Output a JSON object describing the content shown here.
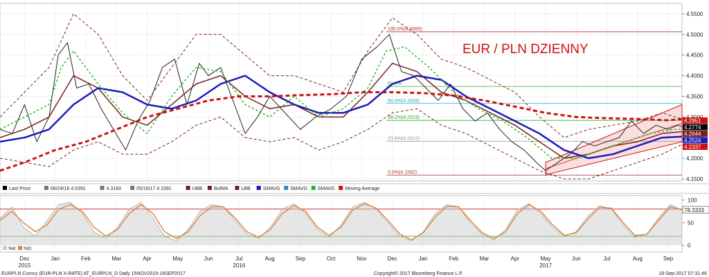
{
  "chart_title": "EUR / PLN DZIENNY",
  "footer": {
    "security": "EURPLN Curncy (EUR-PLN X-RATE) AT_EURPLN_D  Daily 15NOV2015-18SEP2017",
    "copyright": "Copyright© 2017 Bloomberg Finance L.P.",
    "timestamp": "18-Sep-2017 07:31:46"
  },
  "legend": {
    "items": [
      {
        "label": "Last Price",
        "color": "#000000"
      },
      {
        "label": "06/24/16 4.5391",
        "color": "#777777"
      },
      {
        "label": "4.3183",
        "color": "#777777"
      },
      {
        "label": "05/16/17 4.1591",
        "color": "#777777"
      },
      {
        "label": "UBB",
        "color": "#7a1c1c"
      },
      {
        "label": "BolMA",
        "color": "#7a1c1c"
      },
      {
        "label": "LBB",
        "color": "#7a1c1c"
      },
      {
        "label": "SMAVG",
        "color": "#1a1ab8"
      },
      {
        "label": "SMAVG",
        "color": "#2a88d8"
      },
      {
        "label": "SMAVG",
        "color": "#22bb22"
      },
      {
        "label": "Moving Average",
        "color": "#cc1111"
      }
    ]
  },
  "osc_legend": [
    "%K",
    "%D"
  ],
  "tags": {
    "items": [
      {
        "label": "4.2951",
        "value": 4.2951,
        "color": "#cc1111"
      },
      {
        "label": "4.2774",
        "value": 4.2774,
        "color": "#000000"
      },
      {
        "label": "4.2644",
        "value": 4.2644,
        "color": "#7a1c1c"
      },
      {
        "label": "4.2524",
        "value": 4.2524,
        "color": "#1a1ab8"
      },
      {
        "label": "4.2337",
        "value": 4.2337,
        "color": "#cc1111"
      }
    ],
    "osc": {
      "label": "78.3333",
      "value": 78.3333
    }
  },
  "fib_levels": [
    {
      "label": "100.0%(4.5065)",
      "value": 4.5065,
      "color": "#aa3333"
    },
    {
      "label": "61.8%",
      "value": 4.374,
      "color": "#33aa33"
    },
    {
      "label": "50.0%(4.3328)",
      "value": 4.3328,
      "color": "#22aacc"
    },
    {
      "label": "38.2%(4.2919)",
      "value": 4.2919,
      "color": "#33aa33"
    },
    {
      "label": "23.6%(4.2412)",
      "value": 4.2412,
      "color": "#999999"
    },
    {
      "label": "0.0%(4.1592)",
      "value": 4.1592,
      "color": "#aa3333"
    }
  ],
  "colors": {
    "price": "#222222",
    "bollinger": "#7a1c1c",
    "sma_blue": "#1a1ab8",
    "sma_green": "#22bb22",
    "ma_long": "#cc1111",
    "channel": "#cc1111",
    "oscillator": "#d98a4a"
  },
  "chart_data": [
    {
      "type": "line",
      "x_labels": [
        "Dec",
        "Jan",
        "Feb",
        "Mar",
        "Apr",
        "May",
        "Jun",
        "Jul",
        "Aug",
        "Sep",
        "Oct",
        "Nov",
        "Dec",
        "Jan",
        "Feb",
        "Mar",
        "Apr",
        "May",
        "Jun",
        "Jul",
        "Aug",
        "Sep"
      ],
      "year_labels": [
        {
          "label": "2015",
          "month_index": 0
        },
        {
          "label": "2016",
          "month_index": 7
        },
        {
          "label": "2017",
          "month_index": 17
        }
      ],
      "x_range_months": [
        -0.8,
        21.45
      ],
      "y_ticks": [
        4.15,
        4.2,
        4.25,
        4.3,
        4.35,
        4.4,
        4.45,
        4.5,
        4.55
      ],
      "y_tick_labels": [
        "4.1500",
        "4.2000",
        "4.2500",
        "4.3000",
        "4.3500",
        "4.4000",
        "4.4500",
        "4.5000",
        "4.5500"
      ],
      "ylim": [
        4.145,
        4.575
      ],
      "grid": true,
      "series": [
        {
          "name": "Last Price",
          "x": [
            -0.8,
            -0.4,
            0,
            0.4,
            0.8,
            1.1,
            1.4,
            1.7,
            2.1,
            2.5,
            2.9,
            3.3,
            3.7,
            4.1,
            4.5,
            4.9,
            5.3,
            5.7,
            6.0,
            6.4,
            6.8,
            7.2,
            7.6,
            8.0,
            8.5,
            9.0,
            9.5,
            10.0,
            10.5,
            11.0,
            11.5,
            11.9,
            12.3,
            12.7,
            13.1,
            13.5,
            13.9,
            14.3,
            14.7,
            15.1,
            15.5,
            15.9,
            16.3,
            16.7,
            17.0,
            17.4,
            17.8,
            18.2,
            18.6,
            19.0,
            19.4,
            19.8,
            20.2,
            20.6,
            21.0,
            21.3,
            21.45
          ],
          "values": [
            4.27,
            4.26,
            4.33,
            4.24,
            4.3,
            4.45,
            4.48,
            4.37,
            4.38,
            4.32,
            4.27,
            4.22,
            4.29,
            4.34,
            4.42,
            4.44,
            4.33,
            4.43,
            4.4,
            4.42,
            4.34,
            4.26,
            4.3,
            4.35,
            4.31,
            4.27,
            4.3,
            4.32,
            4.35,
            4.44,
            4.47,
            4.5,
            4.41,
            4.4,
            4.37,
            4.34,
            4.38,
            4.32,
            4.29,
            4.31,
            4.27,
            4.24,
            4.22,
            4.19,
            4.17,
            4.19,
            4.21,
            4.24,
            4.23,
            4.24,
            4.25,
            4.29,
            4.26,
            4.28,
            4.27,
            4.28,
            4.277
          ]
        },
        {
          "name": "BolMA",
          "x": [
            -0.8,
            0,
            0.8,
            1.6,
            2.4,
            3.2,
            4.0,
            4.8,
            5.6,
            6.4,
            7.2,
            8.0,
            8.8,
            9.6,
            10.4,
            11.2,
            12.0,
            12.8,
            13.6,
            14.4,
            15.2,
            16.0,
            16.8,
            17.6,
            18.4,
            19.2,
            20.0,
            20.8,
            21.45
          ],
          "values": [
            4.25,
            4.27,
            4.3,
            4.4,
            4.37,
            4.3,
            4.28,
            4.33,
            4.38,
            4.4,
            4.35,
            4.32,
            4.33,
            4.3,
            4.3,
            4.36,
            4.43,
            4.41,
            4.36,
            4.34,
            4.31,
            4.28,
            4.24,
            4.2,
            4.21,
            4.23,
            4.24,
            4.26,
            4.2644
          ]
        },
        {
          "name": "UBB",
          "x": [
            -0.8,
            0,
            0.8,
            1.6,
            2.4,
            3.2,
            4.0,
            4.8,
            5.6,
            6.4,
            7.2,
            8.0,
            8.8,
            9.6,
            10.4,
            11.2,
            12.0,
            12.8,
            13.6,
            14.4,
            15.2,
            16.0,
            16.8,
            17.6,
            18.4,
            19.2,
            20.0,
            20.8,
            21.45
          ],
          "values": [
            4.3,
            4.36,
            4.42,
            4.55,
            4.5,
            4.4,
            4.34,
            4.42,
            4.5,
            4.5,
            4.45,
            4.4,
            4.4,
            4.38,
            4.36,
            4.46,
            4.54,
            4.5,
            4.44,
            4.42,
            4.39,
            4.36,
            4.3,
            4.25,
            4.27,
            4.28,
            4.29,
            4.31,
            4.2951
          ]
        },
        {
          "name": "LBB",
          "x": [
            -0.8,
            0,
            0.8,
            1.6,
            2.4,
            3.2,
            4.0,
            4.8,
            5.6,
            6.4,
            7.2,
            8.0,
            8.8,
            9.6,
            10.4,
            11.2,
            12.0,
            12.8,
            13.6,
            14.4,
            15.2,
            16.0,
            16.8,
            17.6,
            18.4,
            19.2,
            20.0,
            20.8,
            21.45
          ],
          "values": [
            4.2,
            4.19,
            4.18,
            4.22,
            4.24,
            4.21,
            4.21,
            4.24,
            4.28,
            4.3,
            4.25,
            4.24,
            4.25,
            4.22,
            4.24,
            4.27,
            4.31,
            4.32,
            4.28,
            4.26,
            4.23,
            4.2,
            4.17,
            4.15,
            4.15,
            4.17,
            4.19,
            4.21,
            4.2337
          ]
        },
        {
          "name": "SMAVG",
          "x": [
            -0.8,
            0,
            0.8,
            1.6,
            2.4,
            3.2,
            4.0,
            4.8,
            5.6,
            6.4,
            7.2,
            8.0,
            8.8,
            9.6,
            10.4,
            11.2,
            12.0,
            12.8,
            13.6,
            14.4,
            15.2,
            16.0,
            16.8,
            17.6,
            18.4,
            19.2,
            20.0,
            20.8,
            21.45
          ],
          "values": [
            4.24,
            4.25,
            4.27,
            4.33,
            4.37,
            4.36,
            4.33,
            4.32,
            4.34,
            4.38,
            4.4,
            4.36,
            4.33,
            4.31,
            4.31,
            4.33,
            4.38,
            4.4,
            4.39,
            4.35,
            4.32,
            4.29,
            4.26,
            4.22,
            4.2,
            4.21,
            4.23,
            4.25,
            4.2524
          ]
        },
        {
          "name": "SMAVG",
          "x": [
            -0.8,
            0,
            0.8,
            1.2,
            1.6,
            2.4,
            3.2,
            4.0,
            4.8,
            5.6,
            6.4,
            7.2,
            8.0,
            8.8,
            9.6,
            10.4,
            11.2,
            11.8,
            12.4,
            13.2,
            14.0,
            14.8,
            15.6,
            16.4,
            17.2,
            18.0,
            18.8,
            19.6,
            20.4,
            21.2,
            21.45
          ],
          "values": [
            4.27,
            4.3,
            4.33,
            4.42,
            4.46,
            4.38,
            4.31,
            4.26,
            4.35,
            4.42,
            4.41,
            4.33,
            4.3,
            4.35,
            4.3,
            4.32,
            4.37,
            4.46,
            4.47,
            4.42,
            4.36,
            4.32,
            4.29,
            4.25,
            4.2,
            4.2,
            4.22,
            4.24,
            4.26,
            4.27,
            4.27
          ]
        },
        {
          "name": "Moving Average",
          "x": [
            -0.8,
            0,
            1,
            2,
            3,
            4,
            5,
            6,
            7,
            8,
            9,
            10,
            11,
            12,
            13,
            14,
            15,
            16,
            17,
            18,
            19,
            20,
            21,
            21.45
          ],
          "values": [
            4.17,
            4.19,
            4.22,
            4.24,
            4.27,
            4.3,
            4.32,
            4.34,
            4.35,
            4.35,
            4.353,
            4.355,
            4.36,
            4.36,
            4.358,
            4.352,
            4.34,
            4.325,
            4.31,
            4.3,
            4.297,
            4.295,
            4.292,
            4.2951
          ]
        }
      ],
      "channel": {
        "upper": {
          "x": [
            17.0,
            21.45
          ],
          "values": [
            4.19,
            4.33
          ]
        },
        "lower": {
          "x": [
            17.0,
            21.45
          ],
          "values": [
            4.16,
            4.24
          ]
        }
      },
      "tag_values": [
        4.2951,
        4.2774,
        4.2644,
        4.2524,
        4.2337
      ]
    },
    {
      "type": "line",
      "y_ticks": [
        0,
        50,
        100
      ],
      "y_tick_labels": [
        "0",
        "50",
        "100"
      ],
      "ylim": [
        -15,
        110
      ],
      "reference_lines": [
        {
          "value": 80,
          "color": "#cc1111"
        },
        {
          "value": 20,
          "color": "#22aa22"
        }
      ],
      "series": [
        {
          "name": "%K",
          "values": [
            60,
            85,
            40,
            20,
            55,
            90,
            95,
            70,
            30,
            15,
            40,
            80,
            95,
            60,
            20,
            10,
            35,
            75,
            90,
            85,
            55,
            25,
            15,
            40,
            80,
            92,
            70,
            35,
            18,
            45,
            85,
            95,
            80,
            50,
            20,
            10,
            30,
            70,
            90,
            85,
            50,
            25,
            12,
            35,
            78,
            92,
            70,
            40,
            20,
            30,
            65,
            88,
            80,
            45,
            18,
            25,
            60,
            90,
            78
          ]
        },
        {
          "name": "%D",
          "values": [
            55,
            75,
            50,
            30,
            45,
            80,
            90,
            75,
            40,
            20,
            35,
            70,
            90,
            70,
            30,
            15,
            30,
            65,
            85,
            85,
            60,
            30,
            18,
            35,
            70,
            88,
            75,
            40,
            22,
            40,
            78,
            92,
            82,
            55,
            25,
            12,
            28,
            62,
            86,
            85,
            55,
            28,
            15,
            30,
            70,
            90,
            75,
            45,
            22,
            28,
            58,
            84,
            82,
            50,
            22,
            24,
            55,
            85,
            78.3333
          ]
        }
      ]
    }
  ]
}
